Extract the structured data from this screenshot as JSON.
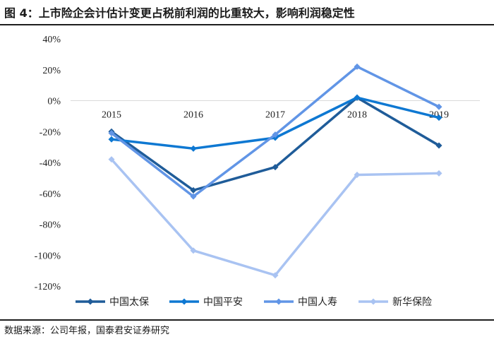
{
  "title": "图 4：上市险企会计估计变更占税前利润的比重较大，影响利润稳定性",
  "source": "数据来源：公司年报，国泰君安证券研究",
  "chart_data": {
    "type": "line",
    "x": [
      "2015",
      "2016",
      "2017",
      "2018",
      "2019"
    ],
    "ylim": [
      -120,
      40
    ],
    "yticks": [
      40,
      20,
      0,
      -20,
      -40,
      -60,
      -80,
      -100,
      -120
    ],
    "ytick_labels": [
      "40%",
      "20%",
      "0%",
      "-20%",
      "-40%",
      "-60%",
      "-80%",
      "-100%",
      "-120%"
    ],
    "unit": "%",
    "series": [
      {
        "name": "中国太保",
        "color": "#1F5C99",
        "values": [
          -20,
          -58,
          -43,
          2,
          -29
        ]
      },
      {
        "name": "中国平安",
        "color": "#0E78D2",
        "values": [
          -25,
          -31,
          -24,
          2,
          -11
        ]
      },
      {
        "name": "中国人寿",
        "color": "#6195E6",
        "values": [
          -21,
          -62,
          -22,
          22,
          -4
        ]
      },
      {
        "name": "新华保险",
        "color": "#A9C3F2",
        "values": [
          -38,
          -97,
          -113,
          -48,
          -47
        ]
      }
    ],
    "legend_position": "bottom"
  }
}
